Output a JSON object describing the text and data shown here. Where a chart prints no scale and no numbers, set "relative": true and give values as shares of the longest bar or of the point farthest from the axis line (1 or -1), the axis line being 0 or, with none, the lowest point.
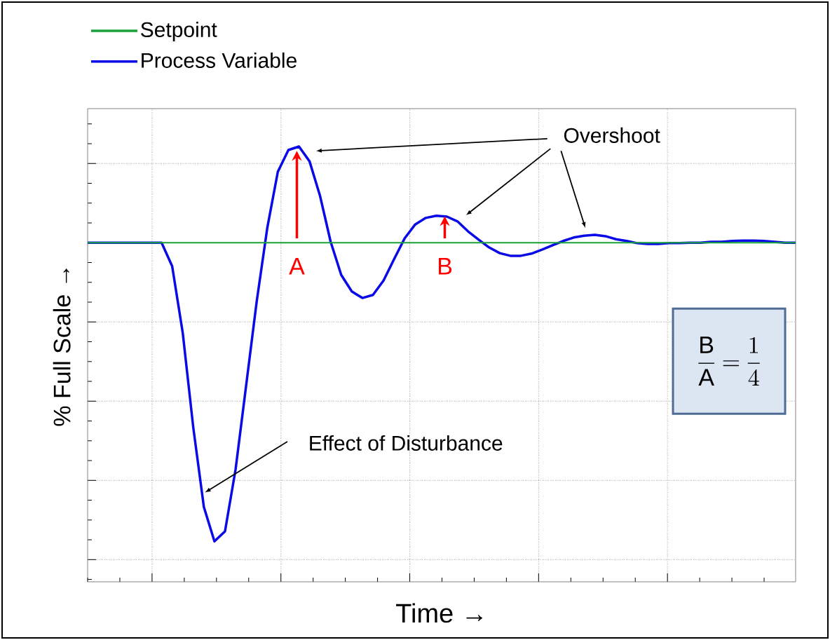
{
  "chart_data": {
    "type": "line",
    "relative": true,
    "xlabel": "Time →",
    "ylabel": "% Full Scale →",
    "grid": true,
    "legend": "top left",
    "marker": "none",
    "line_style": "solid",
    "categories": [
      null,
      null,
      null,
      null,
      null,
      null,
      null,
      null,
      null,
      null,
      null,
      null,
      null,
      null,
      null,
      null,
      null,
      null,
      null,
      null,
      null,
      null,
      null,
      null,
      null,
      null,
      null,
      null,
      null,
      null,
      null,
      null,
      null,
      null,
      null,
      null,
      null,
      null,
      null,
      null,
      null,
      null,
      null,
      null,
      null,
      null,
      null,
      null,
      null,
      null,
      null,
      null,
      null,
      null,
      null,
      null,
      null,
      null,
      null,
      null,
      null,
      null,
      null,
      null,
      null,
      null,
      null,
      null
    ],
    "series": [
      {
        "name": "Setpoint",
        "color": "#1aa33a",
        "values": [
          0.779,
          0.779,
          0.779,
          0.779,
          0.779,
          0.779,
          0.779,
          0.779,
          0.779,
          0.779,
          0.779,
          0.779,
          0.779,
          0.779,
          0.779,
          0.779,
          0.779,
          0.779,
          0.779,
          0.779,
          0.779,
          0.779,
          0.779,
          0.779,
          0.779,
          0.779,
          0.779,
          0.779,
          0.779,
          0.779,
          0.779,
          0.779,
          0.779,
          0.779,
          0.779,
          0.779,
          0.779,
          0.779,
          0.779,
          0.779,
          0.779,
          0.779,
          0.779,
          0.779,
          0.779,
          0.779,
          0.779,
          0.779,
          0.779,
          0.779,
          0.779,
          0.779,
          0.779,
          0.779,
          0.779,
          0.779,
          0.779,
          0.779,
          0.779,
          0.779,
          0.779,
          0.779,
          0.779,
          0.779,
          0.779,
          0.779,
          0.779,
          0.779
        ]
      },
      {
        "name": "Process Variable",
        "color": "#0a0ae6",
        "values": [
          0.779,
          0.779,
          0.779,
          0.779,
          0.779,
          0.779,
          0.779,
          0.779,
          0.725,
          0.572,
          0.354,
          0.172,
          0.093,
          0.116,
          0.258,
          0.451,
          0.644,
          0.813,
          0.942,
          0.992,
          1.0,
          0.966,
          0.886,
          0.781,
          0.705,
          0.667,
          0.652,
          0.659,
          0.692,
          0.741,
          0.789,
          0.821,
          0.836,
          0.841,
          0.839,
          0.828,
          0.805,
          0.786,
          0.768,
          0.755,
          0.749,
          0.749,
          0.754,
          0.763,
          0.773,
          0.783,
          0.791,
          0.795,
          0.797,
          0.794,
          0.787,
          0.783,
          0.778,
          0.776,
          0.776,
          0.778,
          0.778,
          0.779,
          0.779,
          0.781,
          0.781,
          0.783,
          0.784,
          0.784,
          0.783,
          0.781,
          0.779,
          0.779
        ]
      }
    ],
    "annotations": [
      "Overshoot",
      "Effect of Disturbance",
      "A",
      "B",
      "\\frac{\\mathrm{B}}{\\mathrm{A}}=\\frac{1}{4}"
    ]
  }
}
